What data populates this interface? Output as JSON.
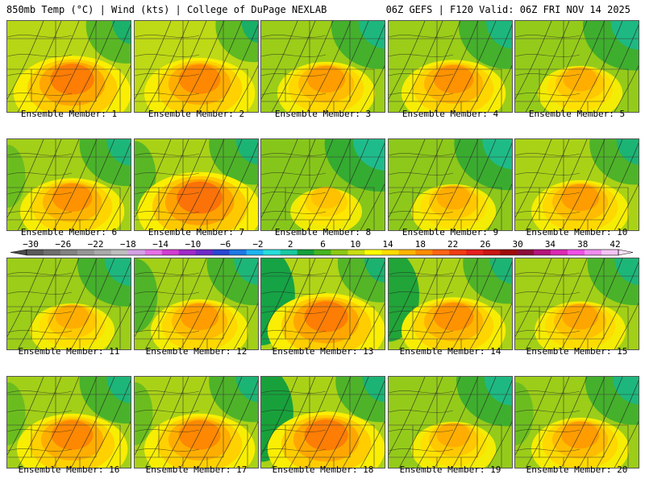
{
  "header": {
    "left": "850mb Temp (°C) | Wind (kts) | College of DuPage NEXLAB",
    "right": "06Z GEFS | F120 Valid: 06Z FRI NOV 14 2025"
  },
  "members": [
    {
      "label": "Ensemble Member: 1",
      "warmth": 0.8,
      "cool_ne": 0.2,
      "cool_w": 0.05
    },
    {
      "label": "Ensemble Member: 2",
      "warmth": 0.75,
      "cool_ne": 0.15,
      "cool_w": 0.05
    },
    {
      "label": "Ensemble Member: 3",
      "warmth": 0.65,
      "cool_ne": 0.4,
      "cool_w": 0.05
    },
    {
      "label": "Ensemble Member: 4",
      "warmth": 0.7,
      "cool_ne": 0.4,
      "cool_w": 0.05
    },
    {
      "label": "Ensemble Member: 5",
      "warmth": 0.55,
      "cool_ne": 0.45,
      "cool_w": 0.05
    },
    {
      "label": "Ensemble Member: 6",
      "warmth": 0.7,
      "cool_ne": 0.35,
      "cool_w": 0.1
    },
    {
      "label": "Ensemble Member: 7",
      "warmth": 0.85,
      "cool_ne": 0.3,
      "cool_w": 0.2
    },
    {
      "label": "Ensemble Member: 8",
      "warmth": 0.45,
      "cool_ne": 0.55,
      "cool_w": 0.05
    },
    {
      "label": "Ensemble Member: 9",
      "warmth": 0.55,
      "cool_ne": 0.5,
      "cool_w": 0.05
    },
    {
      "label": "Ensemble Member: 10",
      "warmth": 0.65,
      "cool_ne": 0.3,
      "cool_w": 0.05
    },
    {
      "label": "Ensemble Member: 11",
      "warmth": 0.55,
      "cool_ne": 0.4,
      "cool_w": 0.05
    },
    {
      "label": "Ensemble Member: 12",
      "warmth": 0.65,
      "cool_ne": 0.35,
      "cool_w": 0.25
    },
    {
      "label": "Ensemble Member: 13",
      "warmth": 0.8,
      "cool_ne": 0.25,
      "cool_w": 0.6
    },
    {
      "label": "Ensemble Member: 14",
      "warmth": 0.7,
      "cool_ne": 0.3,
      "cool_w": 0.5
    },
    {
      "label": "Ensemble Member: 15",
      "warmth": 0.6,
      "cool_ne": 0.35,
      "cool_w": 0.05
    },
    {
      "label": "Ensemble Member: 16",
      "warmth": 0.75,
      "cool_ne": 0.35,
      "cool_w": 0.1
    },
    {
      "label": "Ensemble Member: 17",
      "warmth": 0.75,
      "cool_ne": 0.3,
      "cool_w": 0.1
    },
    {
      "label": "Ensemble Member: 18",
      "warmth": 0.8,
      "cool_ne": 0.3,
      "cool_w": 0.55
    },
    {
      "label": "Ensemble Member: 19",
      "warmth": 0.55,
      "cool_ne": 0.45,
      "cool_w": 0.05
    },
    {
      "label": "Ensemble Member: 20",
      "warmth": 0.65,
      "cool_ne": 0.4,
      "cool_w": 0.1
    }
  ],
  "legend": {
    "tick_labels": [
      "−30",
      "−26",
      "−22",
      "−18",
      "−14",
      "−10",
      "−6",
      "−2",
      "2",
      "6",
      "10",
      "14",
      "18",
      "22",
      "26",
      "30",
      "34",
      "38",
      "42"
    ],
    "colors": [
      "#5a5a5a",
      "#6e6e6e",
      "#828282",
      "#969696",
      "#aaaaaa",
      "#bebebe",
      "#d4a0e6",
      "#e670e6",
      "#d23cd2",
      "#a028c8",
      "#6e28c8",
      "#2846d2",
      "#1e78e6",
      "#1eb4f0",
      "#28dcdc",
      "#19c8a0",
      "#14a03c",
      "#46b41e",
      "#8cc814",
      "#c8dc14",
      "#ffff00",
      "#ffdc00",
      "#ffb400",
      "#ff8c00",
      "#ff6414",
      "#f03c14",
      "#e61e1e",
      "#c81414",
      "#a00a0a",
      "#8c0a3c",
      "#b4147c",
      "#dc28b4",
      "#f050e6",
      "#f08cf0",
      "#f5c3f5"
    ]
  }
}
